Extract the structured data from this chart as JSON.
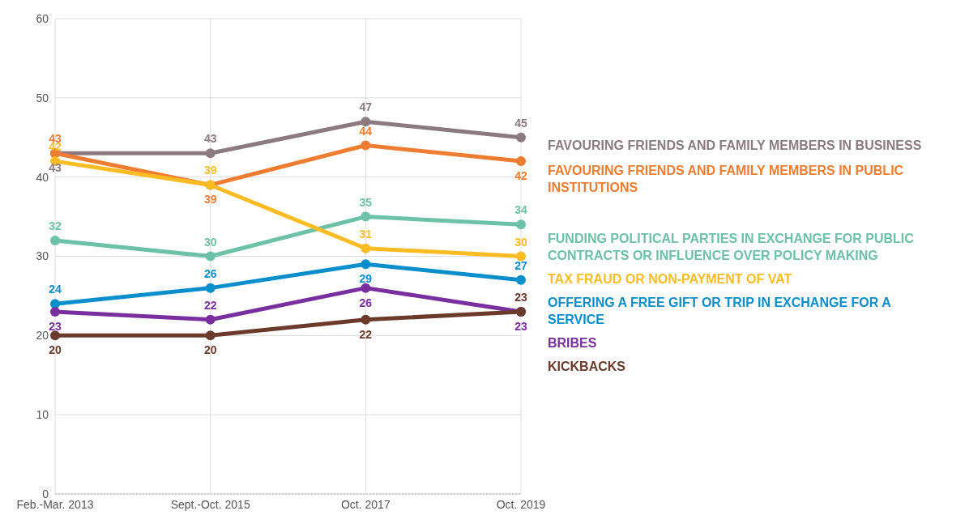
{
  "chart_data": {
    "type": "line",
    "categories": [
      "Feb.-Mar. 2013",
      "Sept.-Oct. 2015",
      "Oct. 2017",
      "Oct. 2019"
    ],
    "series": [
      {
        "name": "FAVOURING FRIENDS AND FAMILY MEMBERS IN BUSINESS",
        "color": "#8b7b80",
        "values": [
          43,
          43,
          47,
          45
        ]
      },
      {
        "name": "FAVOURING FRIENDS AND FAMILY MEMBERS IN PUBLIC INSTITUTIONS",
        "color": "#ee7d31",
        "values": [
          43,
          39,
          44,
          42
        ]
      },
      {
        "name": "FUNDING POLITICAL PARTIES IN EXCHANGE FOR PUBLIC CONTRACTS OR INFLUENCE OVER POLICY MAKING",
        "color": "#6cc1a7",
        "values": [
          32,
          30,
          35,
          34
        ]
      },
      {
        "name": "TAX FRAUD OR NON-PAYMENT OF VAT",
        "color": "#fbbb23",
        "values": [
          42,
          39,
          31,
          30
        ]
      },
      {
        "name": "OFFERING A FREE GIFT OR TRIP IN EXCHANGE FOR A SERVICE",
        "color": "#0b8fcc",
        "values": [
          24,
          26,
          29,
          27
        ]
      },
      {
        "name": "BRIBES",
        "color": "#7a2f9f",
        "values": [
          23,
          22,
          26,
          23
        ]
      },
      {
        "name": "KICKBACKS",
        "color": "#6b3a2b",
        "values": [
          20,
          20,
          22,
          23
        ]
      }
    ],
    "ylim": [
      0,
      60
    ],
    "yticks": [
      0,
      10,
      20,
      30,
      40,
      50,
      60
    ],
    "grid": true,
    "legend": false,
    "data_labels": true,
    "marker": "circle",
    "line_style": "solid"
  }
}
